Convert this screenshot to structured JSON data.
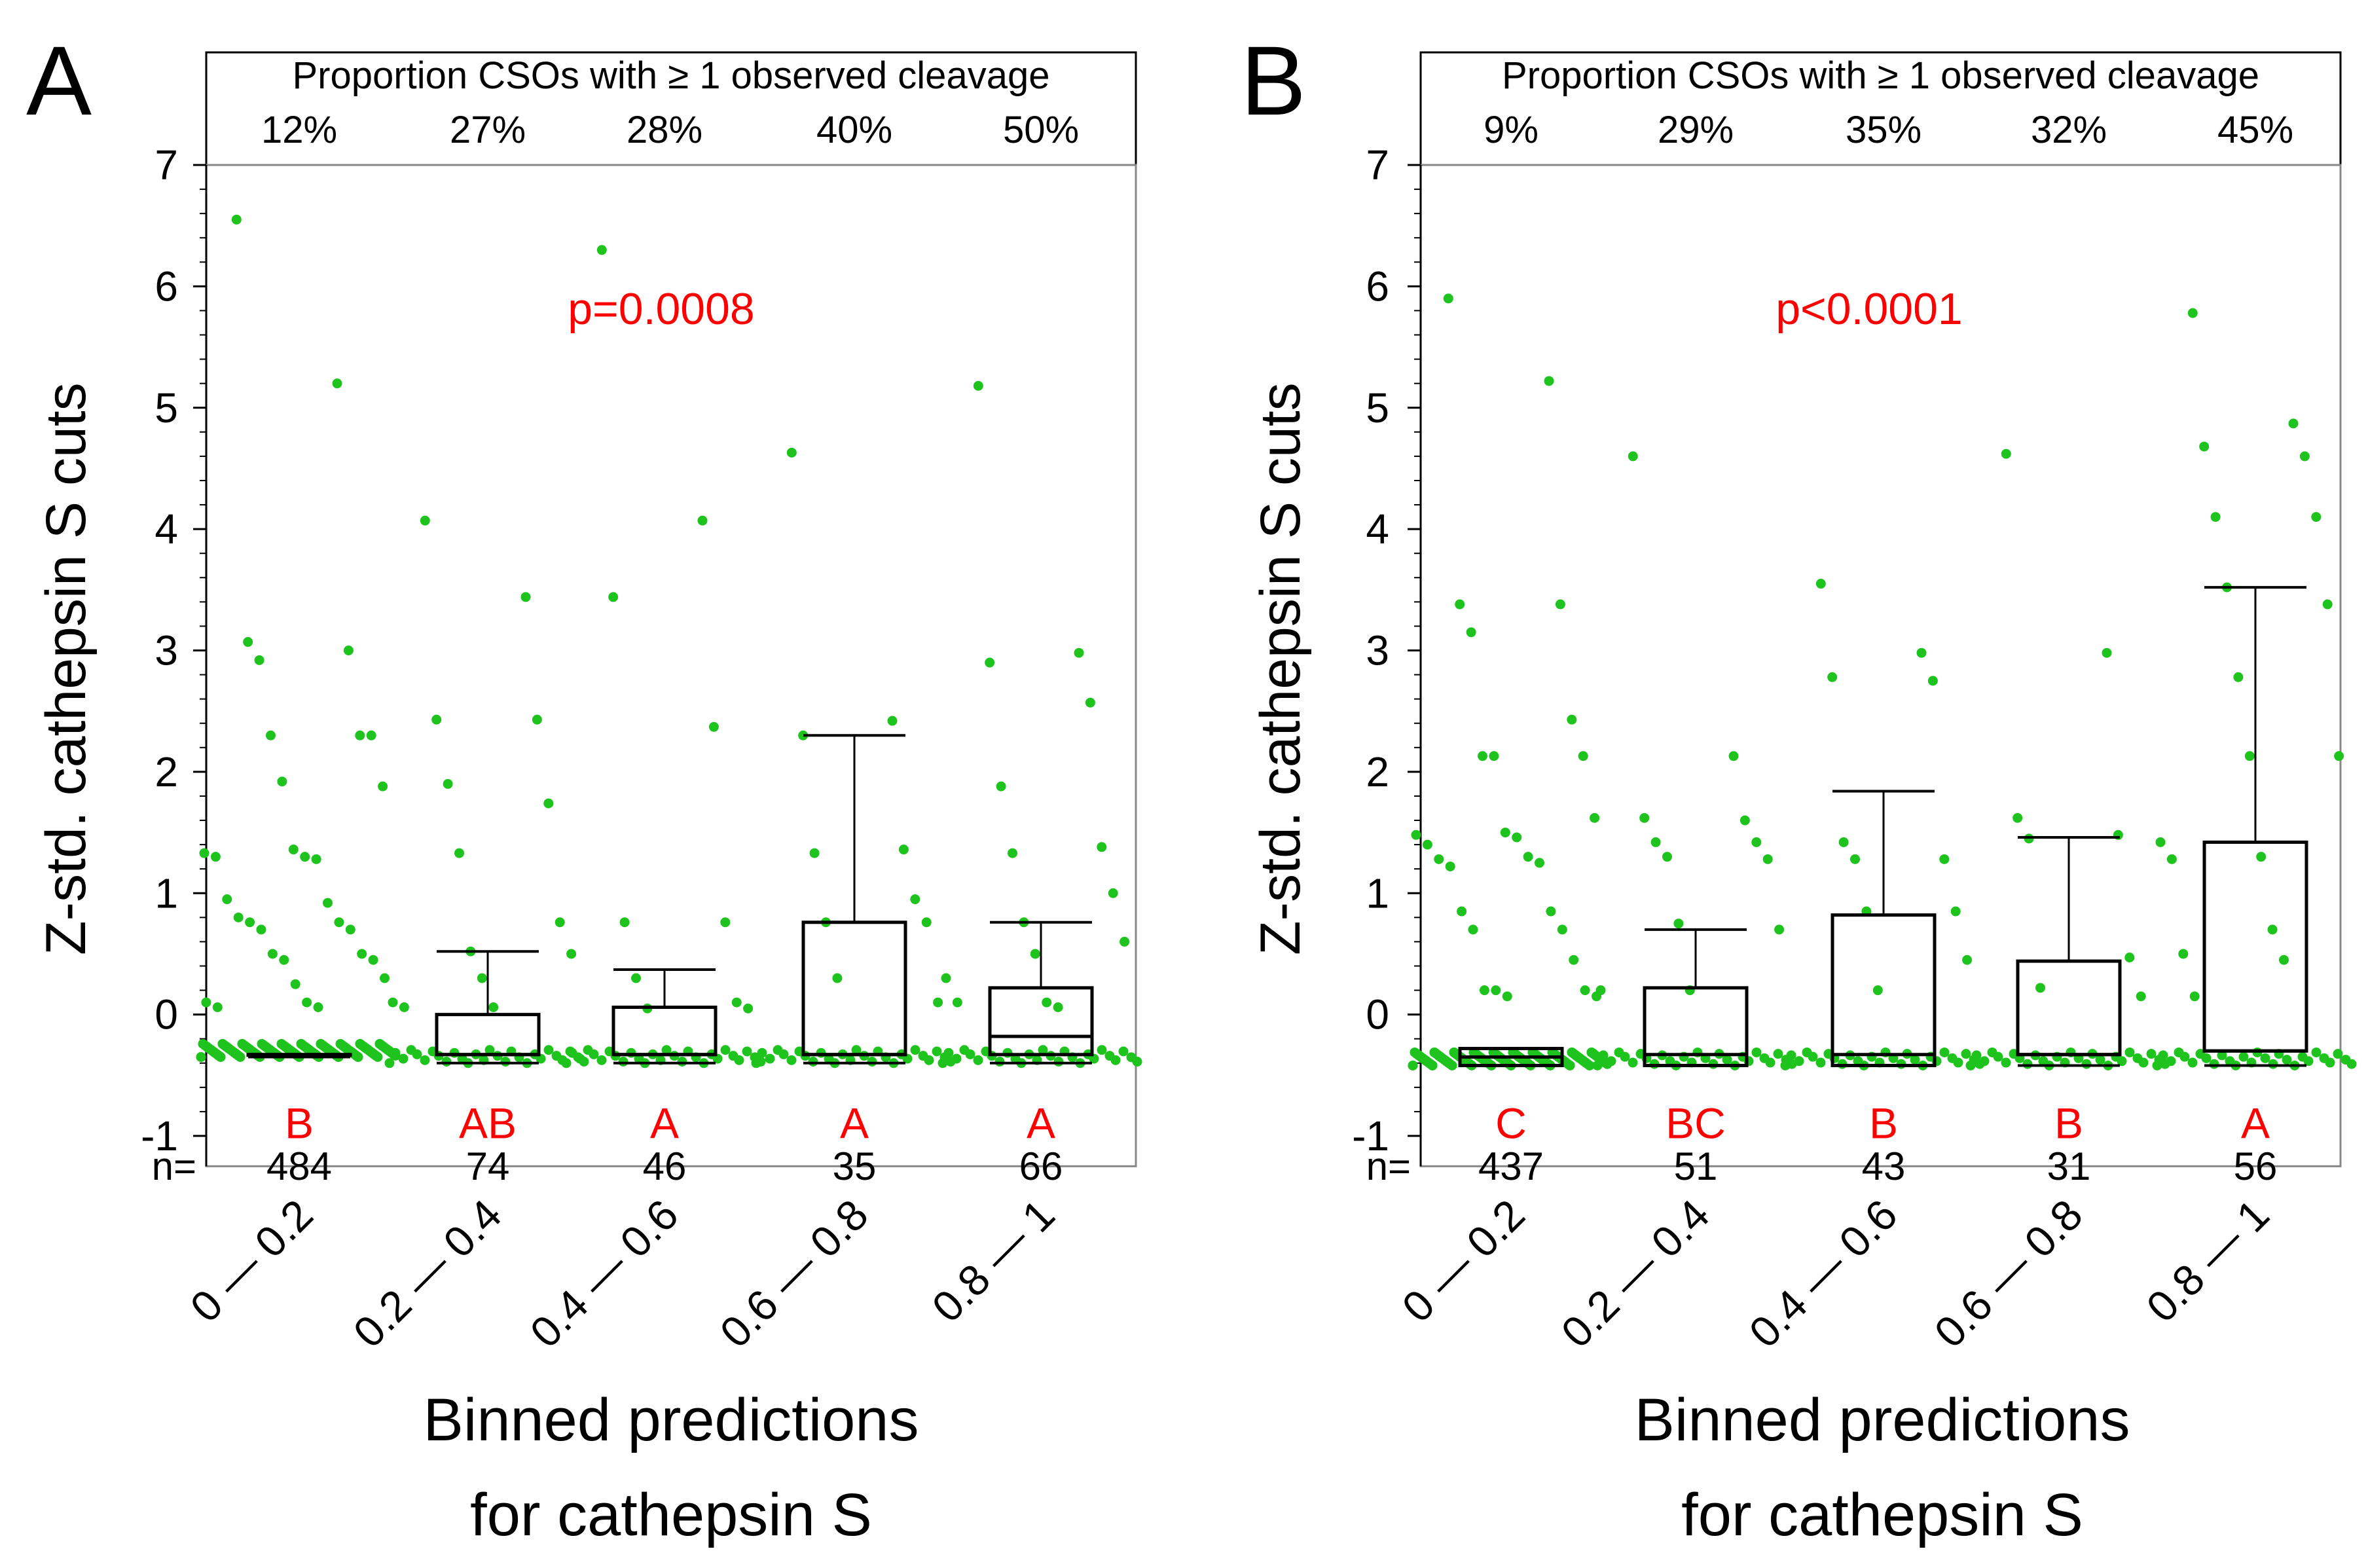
{
  "colors": {
    "points": "#1ec31e",
    "significance": "#ff0000",
    "axis": "#000000",
    "frame": "#888888"
  },
  "shared": {
    "header_title": "Proportion CSOs with ≥ 1 observed cleavage",
    "ylabel": "Z-std. cathepsin S cuts",
    "xlabel_line1": "Binned predictions",
    "xlabel_line2": "for cathepsin S",
    "n_prefix": "n=",
    "categories": [
      "0 — 0.2",
      "0.2 — 0.4",
      "0.4 — 0.6",
      "0.6 — 0.8",
      "0.8 — 1"
    ],
    "ylim": [
      -1,
      7
    ],
    "yticks": [
      "-1",
      "0",
      "1",
      "2",
      "3",
      "4",
      "5",
      "6",
      "7"
    ]
  },
  "chart_data": [
    {
      "type": "box",
      "panel_label": "A",
      "pvalue_text": "p=0.0008",
      "proportions": [
        "12%",
        "27%",
        "28%",
        "40%",
        "50%"
      ],
      "letters": [
        "B",
        "AB",
        "A",
        "A",
        "A"
      ],
      "n": [
        "484",
        "74",
        "46",
        "35",
        "66"
      ],
      "boxes": [
        {
          "min": -0.35,
          "q1": -0.33,
          "median": -0.33,
          "q3": -0.33,
          "whisker_low": -0.35,
          "whisker_high": -0.33
        },
        {
          "min": -0.4,
          "q1": -0.33,
          "median": -0.33,
          "q3": 0.0,
          "whisker_low": -0.4,
          "whisker_high": 0.52
        },
        {
          "min": -0.4,
          "q1": -0.33,
          "median": -0.33,
          "q3": 0.06,
          "whisker_low": -0.4,
          "whisker_high": 0.37
        },
        {
          "min": -0.4,
          "q1": -0.33,
          "median": -0.33,
          "q3": 0.76,
          "whisker_low": -0.4,
          "whisker_high": 2.3
        },
        {
          "min": -0.4,
          "q1": -0.33,
          "median": -0.18,
          "q3": 0.22,
          "whisker_low": -0.4,
          "whisker_high": 0.76
        }
      ],
      "outliers": [
        [
          6.55,
          5.2,
          3.07,
          3.0,
          2.92,
          2.3,
          2.3,
          2.3,
          1.92,
          1.88,
          1.36,
          1.33,
          1.3,
          1.3,
          1.28,
          0.95,
          0.92,
          0.8,
          0.76,
          0.76,
          0.7,
          0.7,
          0.5,
          0.5,
          0.45,
          0.45,
          0.3,
          0.25,
          0.1,
          0.1,
          0.06,
          0.06
        ],
        [
          4.07,
          3.44,
          2.43,
          2.43,
          1.9,
          1.74,
          1.33,
          0.76,
          0.52,
          0.5,
          0.3,
          0.1,
          0.06,
          0.06
        ],
        [
          6.3,
          4.07,
          3.44,
          2.37,
          0.76,
          0.76,
          0.3,
          0.1,
          0.05,
          0.05
        ],
        [
          4.63,
          2.42,
          2.3,
          1.36,
          1.33,
          0.95,
          0.76,
          0.76,
          0.3,
          0.1
        ],
        [
          5.18,
          2.98,
          2.9,
          2.57,
          1.88,
          1.38,
          1.33,
          1.0,
          0.76,
          0.6,
          0.5,
          0.3,
          0.1,
          0.1,
          0.06
        ]
      ]
    },
    {
      "type": "box",
      "panel_label": "B",
      "pvalue_text": "p<0.0001",
      "proportions": [
        "9%",
        "29%",
        "35%",
        "32%",
        "45%"
      ],
      "letters": [
        "C",
        "BC",
        "B",
        "B",
        "A"
      ],
      "n": [
        "437",
        "51",
        "43",
        "31",
        "56"
      ],
      "boxes": [
        {
          "min": -0.42,
          "q1": -0.42,
          "median": -0.35,
          "q3": -0.28,
          "whisker_low": -0.42,
          "whisker_high": -0.28
        },
        {
          "min": -0.42,
          "q1": -0.42,
          "median": -0.33,
          "q3": 0.22,
          "whisker_low": -0.42,
          "whisker_high": 0.7
        },
        {
          "min": -0.42,
          "q1": -0.42,
          "median": -0.33,
          "q3": 0.82,
          "whisker_low": -0.42,
          "whisker_high": 1.84
        },
        {
          "min": -0.42,
          "q1": -0.33,
          "median": -0.33,
          "q3": 0.44,
          "whisker_low": -0.42,
          "whisker_high": 1.46
        },
        {
          "min": -0.42,
          "q1": -0.3,
          "median": -0.3,
          "q3": 1.42,
          "whisker_low": -0.42,
          "whisker_high": 3.52
        }
      ],
      "outliers": [
        [
          5.9,
          5.22,
          3.38,
          3.38,
          3.15,
          2.43,
          2.13,
          2.13,
          2.13,
          1.62,
          1.5,
          1.48,
          1.46,
          1.4,
          1.3,
          1.28,
          1.25,
          1.22,
          0.85,
          0.85,
          0.7,
          0.7,
          0.45,
          0.2,
          0.2,
          0.2,
          0.15,
          0.15
        ],
        [
          4.6,
          2.13,
          1.62,
          1.6,
          1.42,
          1.42,
          1.3,
          1.28,
          0.75,
          0.7,
          0.2,
          0.2
        ],
        [
          3.55,
          2.98,
          2.78,
          2.75,
          1.42,
          1.28,
          1.28,
          0.85,
          0.85,
          0.45,
          0.2
        ],
        [
          4.62,
          2.98,
          1.62,
          1.48,
          1.45,
          0.47,
          0.22,
          0.15
        ],
        [
          5.78,
          4.87,
          4.68,
          4.6,
          4.1,
          4.1,
          3.52,
          3.38,
          2.78,
          2.13,
          2.13,
          1.42,
          1.3,
          1.28,
          0.7,
          0.5,
          0.45,
          0.15
        ]
      ]
    }
  ]
}
